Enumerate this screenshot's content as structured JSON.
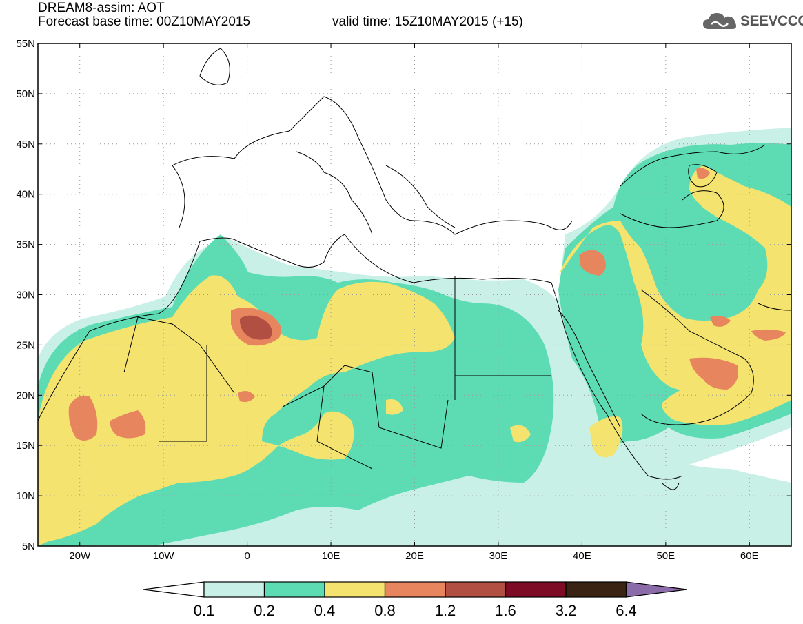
{
  "title": {
    "line1": "DREAM8-assim: AOT",
    "base_time": "Forecast base time: 00Z10MAY2015",
    "valid_time": "valid time: 15Z10MAY2015 (+15)"
  },
  "logo": {
    "text": "SEEVCCC",
    "icon": "cloud-icon"
  },
  "map": {
    "lon_range": [
      -25,
      65
    ],
    "lat_range": [
      5,
      55
    ],
    "lat_labels": [
      "5N",
      "10N",
      "15N",
      "20N",
      "25N",
      "30N",
      "35N",
      "40N",
      "45N",
      "50N",
      "55N"
    ],
    "lon_labels": [
      "20W",
      "10W",
      "0",
      "10E",
      "20E",
      "30E",
      "40E",
      "50E",
      "60E"
    ],
    "lat_values": [
      5,
      10,
      15,
      20,
      25,
      30,
      35,
      40,
      45,
      50,
      55
    ],
    "lon_values": [
      -20,
      -10,
      0,
      10,
      20,
      30,
      40,
      50,
      60
    ]
  },
  "colorbar": {
    "labels": [
      "0.1",
      "0.2",
      "0.4",
      "0.8",
      "1.2",
      "1.6",
      "3.2",
      "6.4"
    ],
    "colors": [
      "#c9f0e6",
      "#5ddcb4",
      "#f4e36e",
      "#e7855e",
      "#b24f43",
      "#7e0b25",
      "#3b2314"
    ],
    "under_color": "#ffffff",
    "over_color": "#8b6ba8"
  },
  "fields": {
    "level1": "#c9f0e6",
    "level2": "#5ddcb4",
    "level3": "#f4e36e",
    "level4": "#e7855e",
    "level5": "#b24f43"
  }
}
